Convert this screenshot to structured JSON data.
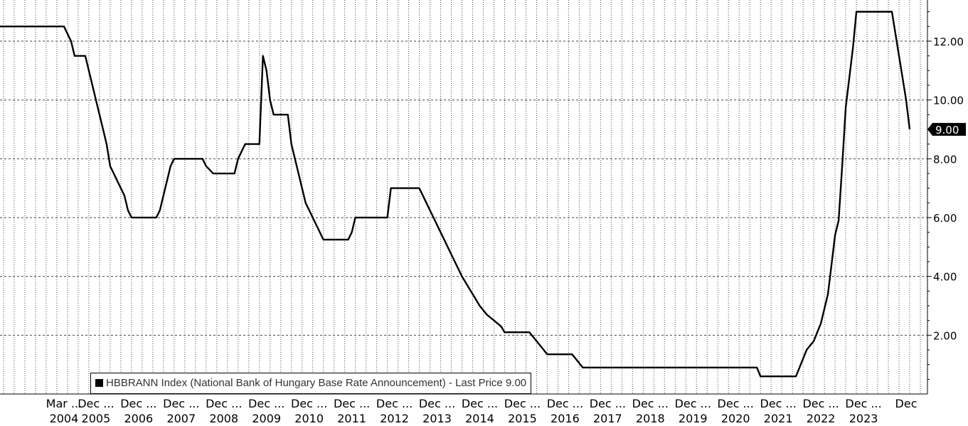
{
  "chart_data": {
    "type": "line",
    "series": [
      {
        "name": "HBBRANN Index (National Bank of Hungary Base Rate Announcement) - Last Price 9.00",
        "color": "#000000",
        "points": [
          [
            "2002-09",
            12.5
          ],
          [
            "2004-03",
            12.5
          ],
          [
            "2004-04",
            12.25
          ],
          [
            "2004-05",
            12.0
          ],
          [
            "2004-06",
            11.5
          ],
          [
            "2004-09",
            11.5
          ],
          [
            "2004-10",
            11.0
          ],
          [
            "2004-11",
            10.5
          ],
          [
            "2004-12",
            10.0
          ],
          [
            "2005-01",
            9.5
          ],
          [
            "2005-02",
            9.0
          ],
          [
            "2005-03",
            8.5
          ],
          [
            "2005-04",
            7.75
          ],
          [
            "2005-05",
            7.5
          ],
          [
            "2005-06",
            7.25
          ],
          [
            "2005-07",
            7.0
          ],
          [
            "2005-08",
            6.75
          ],
          [
            "2005-09",
            6.25
          ],
          [
            "2005-10",
            6.0
          ],
          [
            "2006-05",
            6.0
          ],
          [
            "2006-06",
            6.25
          ],
          [
            "2006-07",
            6.75
          ],
          [
            "2006-08",
            7.25
          ],
          [
            "2006-09",
            7.75
          ],
          [
            "2006-10",
            8.0
          ],
          [
            "2007-06",
            8.0
          ],
          [
            "2007-07",
            7.75
          ],
          [
            "2007-09",
            7.5
          ],
          [
            "2008-03",
            7.5
          ],
          [
            "2008-04",
            8.0
          ],
          [
            "2008-05",
            8.25
          ],
          [
            "2008-06",
            8.5
          ],
          [
            "2008-10",
            8.5
          ],
          [
            "2008-11",
            11.5
          ],
          [
            "2008-12",
            11.0
          ],
          [
            "2009-01",
            10.0
          ],
          [
            "2009-02",
            9.5
          ],
          [
            "2009-06",
            9.5
          ],
          [
            "2009-07",
            8.5
          ],
          [
            "2009-08",
            8.0
          ],
          [
            "2009-09",
            7.5
          ],
          [
            "2009-10",
            7.0
          ],
          [
            "2009-11",
            6.5
          ],
          [
            "2010-01",
            6.0
          ],
          [
            "2010-03",
            5.5
          ],
          [
            "2010-04",
            5.25
          ],
          [
            "2010-11",
            5.25
          ],
          [
            "2010-12",
            5.5
          ],
          [
            "2011-01",
            6.0
          ],
          [
            "2011-10",
            6.0
          ],
          [
            "2011-11",
            7.0
          ],
          [
            "2012-07",
            7.0
          ],
          [
            "2012-08",
            6.75
          ],
          [
            "2012-09",
            6.5
          ],
          [
            "2012-10",
            6.25
          ],
          [
            "2012-11",
            6.0
          ],
          [
            "2012-12",
            5.75
          ],
          [
            "2013-01",
            5.5
          ],
          [
            "2013-02",
            5.25
          ],
          [
            "2013-03",
            5.0
          ],
          [
            "2013-04",
            4.75
          ],
          [
            "2013-05",
            4.5
          ],
          [
            "2013-06",
            4.25
          ],
          [
            "2013-07",
            4.0
          ],
          [
            "2013-08",
            3.8
          ],
          [
            "2013-09",
            3.6
          ],
          [
            "2013-10",
            3.4
          ],
          [
            "2013-11",
            3.2
          ],
          [
            "2013-12",
            3.0
          ],
          [
            "2014-01",
            2.85
          ],
          [
            "2014-02",
            2.7
          ],
          [
            "2014-03",
            2.6
          ],
          [
            "2014-04",
            2.5
          ],
          [
            "2014-05",
            2.4
          ],
          [
            "2014-06",
            2.3
          ],
          [
            "2014-07",
            2.1
          ],
          [
            "2015-02",
            2.1
          ],
          [
            "2015-03",
            1.95
          ],
          [
            "2015-04",
            1.8
          ],
          [
            "2015-05",
            1.65
          ],
          [
            "2015-06",
            1.5
          ],
          [
            "2015-07",
            1.35
          ],
          [
            "2016-02",
            1.35
          ],
          [
            "2016-03",
            1.2
          ],
          [
            "2016-04",
            1.05
          ],
          [
            "2016-05",
            0.9
          ],
          [
            "2020-06",
            0.9
          ],
          [
            "2020-07",
            0.6
          ],
          [
            "2021-05",
            0.6
          ],
          [
            "2021-06",
            0.9
          ],
          [
            "2021-07",
            1.2
          ],
          [
            "2021-08",
            1.5
          ],
          [
            "2021-09",
            1.65
          ],
          [
            "2021-10",
            1.8
          ],
          [
            "2021-11",
            2.1
          ],
          [
            "2021-12",
            2.4
          ],
          [
            "2022-01",
            2.9
          ],
          [
            "2022-02",
            3.4
          ],
          [
            "2022-03",
            4.4
          ],
          [
            "2022-04",
            5.4
          ],
          [
            "2022-05",
            5.9
          ],
          [
            "2022-06",
            7.75
          ],
          [
            "2022-07",
            9.75
          ],
          [
            "2022-08",
            10.75
          ],
          [
            "2022-09",
            11.75
          ],
          [
            "2022-10",
            13.0
          ],
          [
            "2023-08",
            13.0
          ],
          [
            "2023-09",
            12.25
          ],
          [
            "2023-10",
            11.5
          ],
          [
            "2023-11",
            10.75
          ],
          [
            "2023-12",
            10.0
          ],
          [
            "2024-01",
            9.0
          ]
        ]
      }
    ],
    "xlim": [
      "2002-09",
      "2024-06"
    ],
    "ylim": [
      0,
      13.4
    ],
    "y_ticks": [
      "2.00",
      "4.00",
      "6.00",
      "8.00",
      "10.00",
      "12.00"
    ],
    "y_tick_values": [
      2,
      4,
      6,
      8,
      10,
      12
    ],
    "x_tick_labels": [
      {
        "at": "2004-03",
        "line1": "Mar ...",
        "line2": "2004"
      },
      {
        "at": "2004-12",
        "line1": "Dec ...",
        "line2": "2005"
      },
      {
        "at": "2005-12",
        "line1": "Dec ...",
        "line2": "2006"
      },
      {
        "at": "2006-12",
        "line1": "Dec ...",
        "line2": "2007"
      },
      {
        "at": "2007-12",
        "line1": "Dec ...",
        "line2": "2008"
      },
      {
        "at": "2008-12",
        "line1": "Dec ...",
        "line2": "2009"
      },
      {
        "at": "2009-12",
        "line1": "Dec ...",
        "line2": "2010"
      },
      {
        "at": "2010-12",
        "line1": "Dec ...",
        "line2": "2011"
      },
      {
        "at": "2011-12",
        "line1": "Dec ...",
        "line2": "2012"
      },
      {
        "at": "2012-12",
        "line1": "Dec ...",
        "line2": "2013"
      },
      {
        "at": "2013-12",
        "line1": "Dec ...",
        "line2": "2014"
      },
      {
        "at": "2014-12",
        "line1": "Dec ...",
        "line2": "2015"
      },
      {
        "at": "2015-12",
        "line1": "Dec ...",
        "line2": "2016"
      },
      {
        "at": "2016-12",
        "line1": "Dec ...",
        "line2": "2017"
      },
      {
        "at": "2017-12",
        "line1": "Dec ...",
        "line2": "2018"
      },
      {
        "at": "2018-12",
        "line1": "Dec ...",
        "line2": "2019"
      },
      {
        "at": "2019-12",
        "line1": "Dec ...",
        "line2": "2020"
      },
      {
        "at": "2020-12",
        "line1": "Dec ...",
        "line2": "2021"
      },
      {
        "at": "2021-12",
        "line1": "Dec ...",
        "line2": "2022"
      },
      {
        "at": "2022-12",
        "line1": "Dec ...",
        "line2": "2023"
      },
      {
        "at": "2023-12",
        "line1": "Dec",
        "line2": ""
      }
    ],
    "last_price_label": "9.00",
    "grid": "vertical dotted every 3 months, horizontal dashed at y ticks",
    "legend_placement": "bottom-left"
  }
}
